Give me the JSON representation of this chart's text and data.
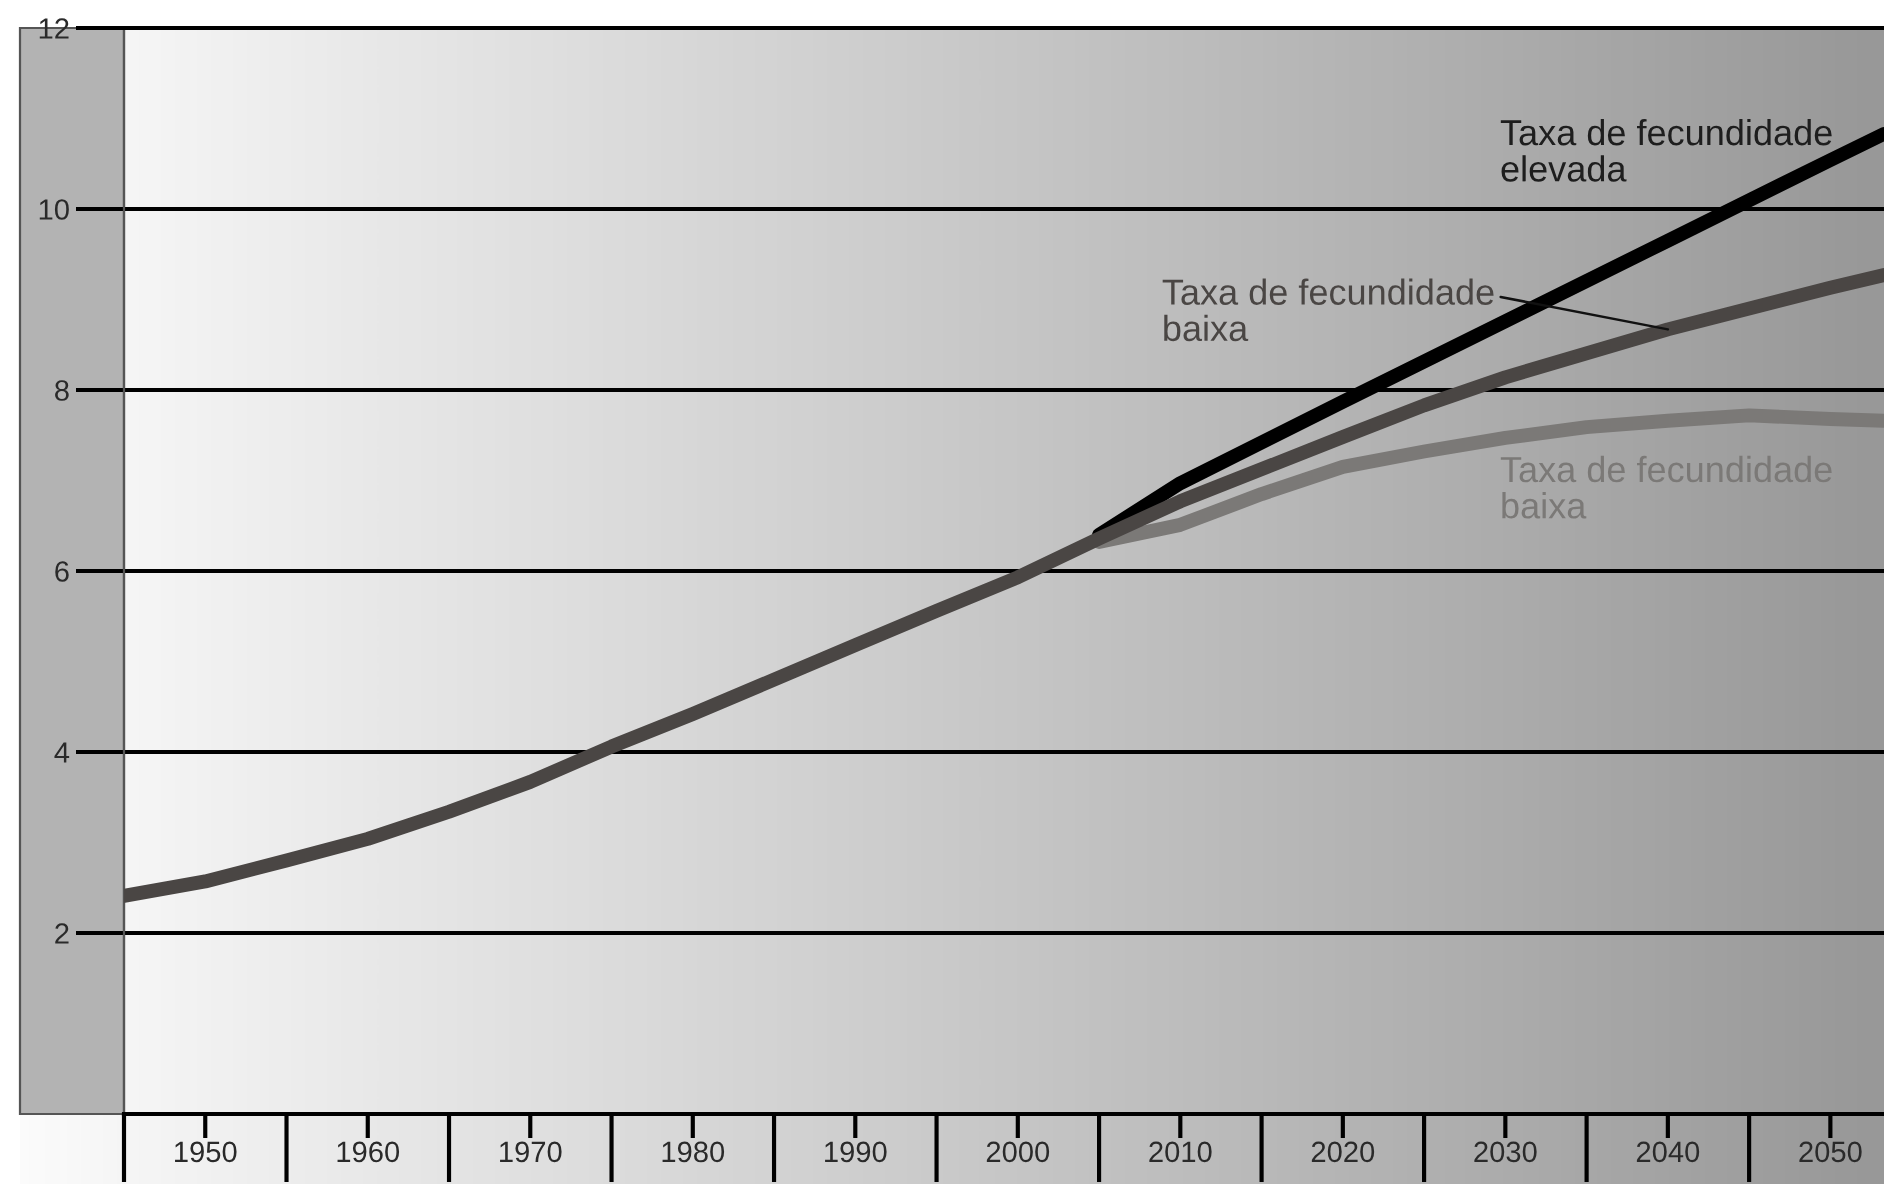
{
  "chart_data": {
    "type": "line",
    "xlim": [
      1945,
      2053.3
    ],
    "ylim": [
      0,
      12
    ],
    "xticks": [
      1950,
      1960,
      1970,
      1980,
      1990,
      2000,
      2010,
      2020,
      2030,
      2040,
      2050
    ],
    "yticks": [
      2,
      4,
      6,
      8,
      10,
      12
    ],
    "grid": "y",
    "series": [
      {
        "name": "Taxa de fecundidade\nelevada",
        "color": "#000000",
        "x": [
          2005,
          2010,
          2020,
          2030,
          2040,
          2050,
          2053.3
        ],
        "values": [
          6.4,
          6.97,
          7.87,
          8.76,
          9.65,
          10.54,
          10.83
        ]
      },
      {
        "name": "Taxa de fecundidade\nbaixa",
        "color": "#7b7977",
        "x": [
          2005,
          2010,
          2015,
          2020,
          2025,
          2030,
          2035,
          2040,
          2045,
          2050,
          2053.3
        ],
        "values": [
          6.32,
          6.51,
          6.85,
          7.15,
          7.32,
          7.47,
          7.59,
          7.66,
          7.72,
          7.68,
          7.66
        ]
      },
      {
        "name": "Taxa de fecundidade\nbaixa",
        "color": "#4a4644",
        "x": [
          1945,
          1950,
          1955,
          1960,
          1965,
          1970,
          1975,
          1980,
          1985,
          1990,
          1995,
          2000,
          2005,
          2010,
          2020,
          2025,
          2030,
          2040,
          2050,
          2053.3
        ],
        "values": [
          2.41,
          2.57,
          2.8,
          3.04,
          3.34,
          3.67,
          4.06,
          4.42,
          4.8,
          5.18,
          5.56,
          5.93,
          6.36,
          6.77,
          7.48,
          7.83,
          8.14,
          8.67,
          9.13,
          9.27
        ]
      }
    ]
  }
}
